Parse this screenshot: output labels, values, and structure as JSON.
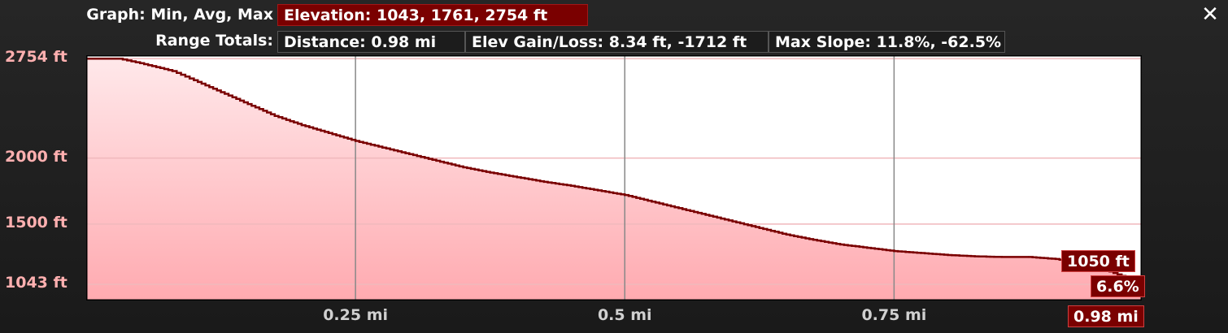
{
  "header": {
    "graph_label": "Graph: Min, Avg, Max",
    "elevation_stat": "Elevation: 1043, 1761, 2754 ft",
    "range_label": "Range Totals:",
    "distance_stat": "Distance: 0.98 mi",
    "gain_loss_stat": "Elev Gain/Loss: 8.34 ft, -1712 ft",
    "max_slope_stat": "Max Slope: 11.8%, -62.5%",
    "close_icon": "close-icon"
  },
  "colors": {
    "accent": "#7a0000",
    "line": "#7a0000",
    "fill_top": "#ffe8ea",
    "fill_bottom": "#ffaab0",
    "grid_h": "#f0b8bc",
    "grid_v": "#888888"
  },
  "cursor": {
    "elevation_readout": "1050 ft",
    "slope_readout": "6.6%",
    "distance_readout": "0.98 mi"
  },
  "chart_data": {
    "type": "area",
    "title": "",
    "xlabel": "",
    "ylabel": "",
    "xlim": [
      0,
      0.98
    ],
    "ylim": [
      920,
      2780
    ],
    "x_ticks": [
      {
        "value": 0.25,
        "label": "0.25 mi"
      },
      {
        "value": 0.5,
        "label": "0.5 mi"
      },
      {
        "value": 0.75,
        "label": "0.75 mi"
      }
    ],
    "y_ticks": [
      {
        "value": 2754,
        "label": "2754 ft"
      },
      {
        "value": 2000,
        "label": "2000 ft"
      },
      {
        "value": 1500,
        "label": "1500 ft"
      },
      {
        "value": 1043,
        "label": "1043 ft"
      }
    ],
    "grid": true,
    "series": [
      {
        "x": [
          0,
          0.03,
          0.05,
          0.08,
          0.1,
          0.125,
          0.15,
          0.175,
          0.2,
          0.225,
          0.25,
          0.275,
          0.3,
          0.325,
          0.35,
          0.375,
          0.4,
          0.425,
          0.45,
          0.475,
          0.5,
          0.525,
          0.55,
          0.575,
          0.6,
          0.625,
          0.65,
          0.675,
          0.7,
          0.725,
          0.75,
          0.775,
          0.8,
          0.825,
          0.85,
          0.875,
          0.9,
          0.925,
          0.95,
          0.98
        ],
        "y": [
          2754,
          2754,
          2720,
          2660,
          2590,
          2500,
          2410,
          2320,
          2250,
          2190,
          2130,
          2080,
          2030,
          1980,
          1930,
          1890,
          1855,
          1820,
          1790,
          1755,
          1720,
          1670,
          1620,
          1570,
          1520,
          1470,
          1420,
          1380,
          1345,
          1320,
          1295,
          1280,
          1265,
          1255,
          1250,
          1250,
          1235,
          1195,
          1140,
          1050
        ]
      }
    ]
  }
}
